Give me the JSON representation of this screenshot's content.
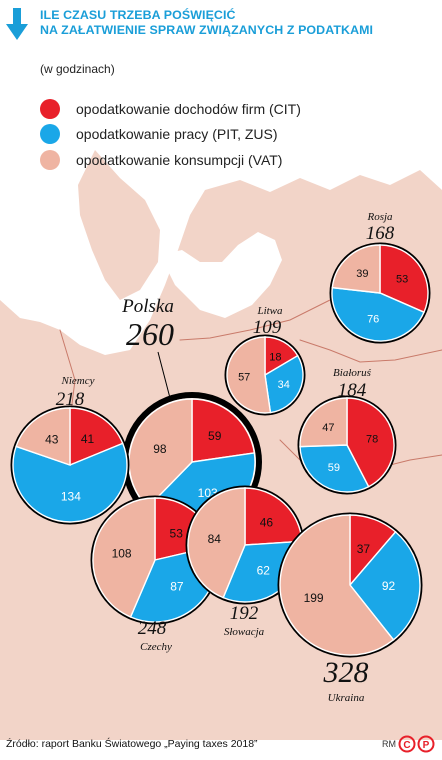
{
  "header": {
    "title_line1": "ILE CZASU TRZEBA POŚWIĘCIĆ",
    "title_line2": "NA ZAŁATWIENIE SPRAW ZWIĄZANYCH Z PODATKAMI",
    "subtitle": "(w godzinach)",
    "icon": "arrow-down-icon"
  },
  "legend": [
    {
      "label": "opodatkowanie dochodów firm (CIT)",
      "color": "#e8202a"
    },
    {
      "label": "opodatkowanie pracy (PIT, ZUS)",
      "color": "#1aa7e8"
    },
    {
      "label": "opodatkowanie konsumpcji (VAT)",
      "color": "#efb4a2"
    }
  ],
  "colors": {
    "cit": "#e8202a",
    "pit": "#1aa7e8",
    "vat": "#efb4a2",
    "map_land": "#f2d4c8",
    "map_border": "#c97a6a",
    "ring": "#000000",
    "title": "#1a9ed8"
  },
  "chart_data": {
    "type": "pie",
    "unit": "godziny",
    "series_order": [
      "CIT",
      "PIT, ZUS",
      "VAT"
    ],
    "countries": [
      {
        "name": "Polska",
        "total": "260",
        "cit": 59,
        "pit": 103,
        "vat": 98,
        "highlight": true
      },
      {
        "name": "Niemcy",
        "total": "218",
        "cit": 41,
        "pit": 134,
        "vat": 43
      },
      {
        "name": "Czechy",
        "total": "248",
        "cit": 53,
        "pit": 87,
        "vat": 108
      },
      {
        "name": "Słowacja",
        "total": "192",
        "cit": 46,
        "pit": 62,
        "vat": 84
      },
      {
        "name": "Litwa",
        "total": "109",
        "cit": 18,
        "pit": 34,
        "vat": 57
      },
      {
        "name": "Rosja",
        "total": "168",
        "cit": 53,
        "pit": 76,
        "vat": 39
      },
      {
        "name": "Białoruś",
        "total": "184",
        "cit": 78,
        "pit": 59,
        "vat": 47
      },
      {
        "name": "Ukraina",
        "total": "328",
        "cit": 37,
        "pit": 92,
        "vat": 199
      }
    ]
  },
  "footer": {
    "source": "Źródło: raport Banku Światowego „Paying taxes 2018”",
    "author": "RM",
    "logo": "cp-logo"
  }
}
